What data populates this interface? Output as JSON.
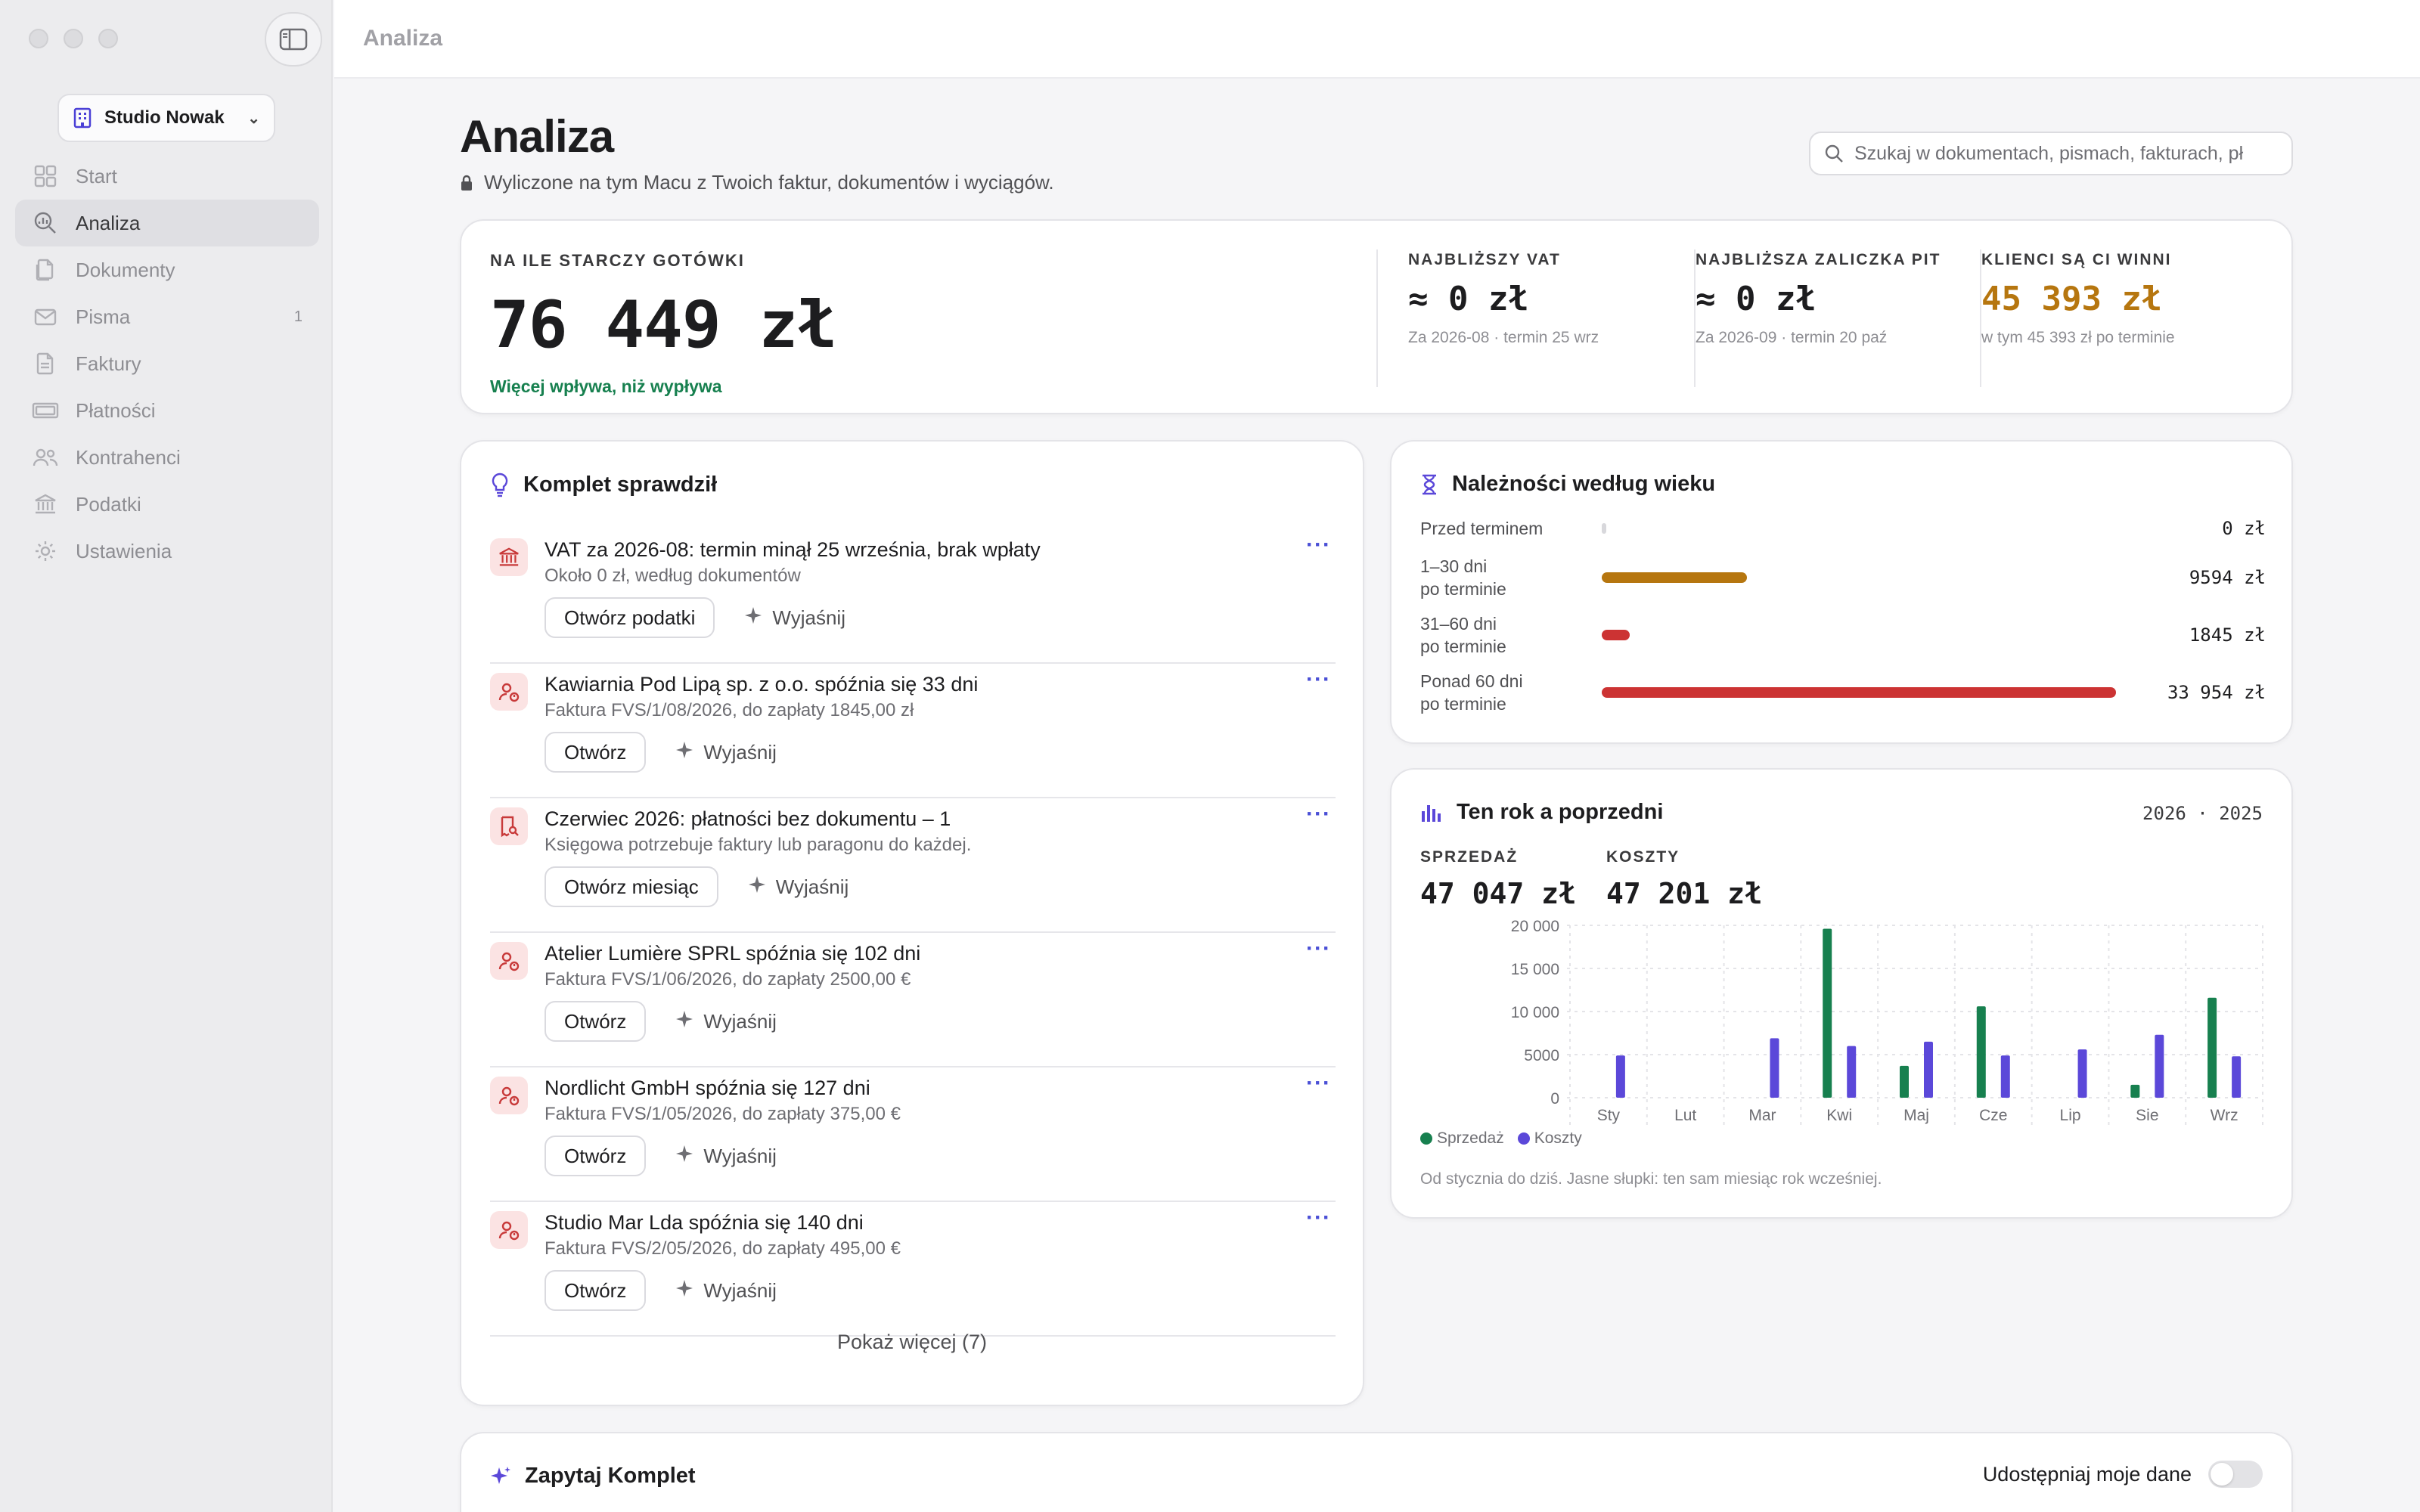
{
  "window": {
    "title": "Analiza"
  },
  "sidebar": {
    "workspace": "Studio Nowak",
    "items": [
      {
        "label": "Start",
        "icon": "grid-icon"
      },
      {
        "label": "Analiza",
        "icon": "search-chart-icon"
      },
      {
        "label": "Dokumenty",
        "icon": "documents-icon"
      },
      {
        "label": "Pisma",
        "icon": "envelope-icon",
        "count": "1"
      },
      {
        "label": "Faktury",
        "icon": "invoice-icon"
      },
      {
        "label": "Płatności",
        "icon": "payments-icon"
      },
      {
        "label": "Kontrahenci",
        "icon": "people-icon"
      },
      {
        "label": "Podatki",
        "icon": "bank-icon"
      },
      {
        "label": "Ustawienia",
        "icon": "gear-icon"
      }
    ]
  },
  "header": {
    "title": "Analiza",
    "subtitle": "Wyliczone na tym Macu z Twoich faktur, dokumentów i wyciągów.",
    "search_placeholder": "Szukaj w dokumentach, pismach, fakturach, pł"
  },
  "metrics": {
    "cash": {
      "label": "NA ILE STARCZY GOTÓWKI",
      "value": "76 449 zł",
      "note": "Więcej wpływa, niż wypływa"
    },
    "vat": {
      "label": "NAJBLIŻSZY VAT",
      "value": "≈ 0 zł",
      "sub": "Za 2026-08 · termin 25 wrz"
    },
    "pit": {
      "label": "NAJBLIŻSZA ZALICZKA PIT",
      "value": "≈ 0 zł",
      "sub": "Za 2026-09 · termin 20 paź"
    },
    "clients": {
      "label": "KLIENCI SĄ CI WINNI",
      "value": "45 393 zł",
      "sub": "w tym 45 393 zł po terminie"
    }
  },
  "checks": {
    "title": "Komplet sprawdził",
    "items": [
      {
        "icon": "bank-icon",
        "title": "VAT za 2026-08: termin minął 25 września, brak wpłaty",
        "desc": "Około 0 zł, według dokumentów",
        "primary": "Otwórz podatki",
        "secondary": "Wyjaśnij"
      },
      {
        "icon": "person-alert-icon",
        "title": "Kawiarnia Pod Lipą sp. z o.o. spóźnia się 33 dni",
        "desc": "Faktura FVS/1/08/2026, do zapłaty 1845,00 zł",
        "primary": "Otwórz",
        "secondary": "Wyjaśnij"
      },
      {
        "icon": "receipt-search-icon",
        "title": "Czerwiec 2026: płatności bez dokumentu – 1",
        "desc": "Księgowa potrzebuje faktury lub paragonu do każdej.",
        "primary": "Otwórz miesiąc",
        "secondary": "Wyjaśnij"
      },
      {
        "icon": "person-alert-icon",
        "title": "Atelier Lumière SPRL spóźnia się 102 dni",
        "desc": "Faktura FVS/1/06/2026, do zapłaty 2500,00 €",
        "primary": "Otwórz",
        "secondary": "Wyjaśnij"
      },
      {
        "icon": "person-alert-icon",
        "title": "Nordlicht GmbH spóźnia się 127 dni",
        "desc": "Faktura FVS/1/05/2026, do zapłaty 375,00 €",
        "primary": "Otwórz",
        "secondary": "Wyjaśnij"
      },
      {
        "icon": "person-alert-icon",
        "title": "Studio Mar Lda spóźnia się 140 dni",
        "desc": "Faktura FVS/2/05/2026, do zapłaty 495,00 €",
        "primary": "Otwórz",
        "secondary": "Wyjaśnij"
      }
    ],
    "show_more": "Pokaż więcej (7)"
  },
  "aging": {
    "title": "Należności według wieku",
    "rows": [
      {
        "label": "Przed terminem",
        "value": "0 zł",
        "amount": 0,
        "color": "#d8d8dc"
      },
      {
        "label": "1–30 dni\npo terminie",
        "value": "9594 zł",
        "amount": 9594,
        "color": "#b6760f"
      },
      {
        "label": "31–60 dni\npo terminie",
        "value": "1845 zł",
        "amount": 1845,
        "color": "#cc3333"
      },
      {
        "label": "Ponad 60 dni\npo terminie",
        "value": "33 954 zł",
        "amount": 33954,
        "color": "#cc3333"
      }
    ]
  },
  "yoy": {
    "title": "Ten rok a poprzedni",
    "years": "2026 · 2025",
    "sales_label": "SPRZEDAŻ",
    "sales_value": "47 047 zł",
    "costs_label": "KOSZTY",
    "costs_value": "47 201 zł",
    "legend_sales": "Sprzedaż",
    "legend_costs": "Koszty",
    "note": "Od stycznia do dziś. Jasne słupki: ten sam miesiąc rok wcześniej."
  },
  "chart_data": {
    "type": "bar",
    "categories": [
      "Sty",
      "Lut",
      "Mar",
      "Kwi",
      "Maj",
      "Cze",
      "Lip",
      "Sie",
      "Wrz"
    ],
    "series": [
      {
        "name": "Sprzedaż",
        "values": [
          0,
          0,
          0,
          19600,
          3700,
          10600,
          0,
          1500,
          11600
        ],
        "color": "#17804f"
      },
      {
        "name": "Koszty",
        "values": [
          4900,
          0,
          6900,
          6000,
          6500,
          4900,
          5600,
          7300,
          4800
        ],
        "color": "#5b48d9"
      }
    ],
    "yticks": [
      "0",
      "5000",
      "10 000",
      "15 000",
      "20 000"
    ],
    "ylim": [
      0,
      20000
    ],
    "grid": true
  },
  "ask": {
    "title": "Zapytaj Komplet",
    "share_label": "Udostępniaj moje dane"
  }
}
